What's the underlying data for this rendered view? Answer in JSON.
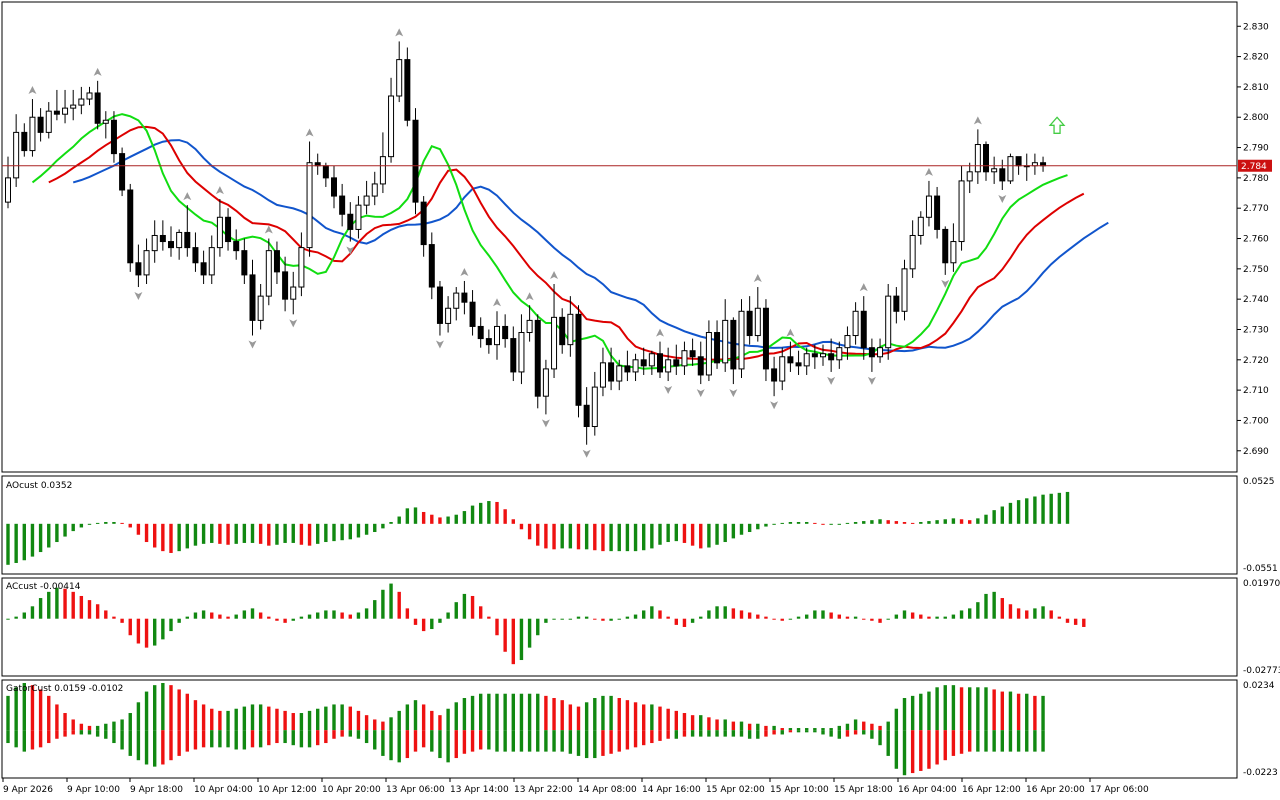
{
  "colors": {
    "bg": "#ffffff",
    "frame": "#000000",
    "bull_candle": "#ffffff",
    "bear_candle": "#000000",
    "ma_blue": "#1155cc",
    "ma_red": "#dd0000",
    "ma_green": "#11dd11",
    "price_line": "#aa2222",
    "price_tag": "#cc1111",
    "hist_up": "#118811",
    "hist_down": "#ee1111",
    "fractal": "#999999",
    "arrow": "#44cc44"
  },
  "chart_data": [
    {
      "type": "candlestick",
      "pane": "main",
      "ylim": [
        2.683,
        2.838
      ],
      "y_ticks": [
        "2.830",
        "2.820",
        "2.810",
        "2.800",
        "2.790",
        "2.780",
        "2.770",
        "2.760",
        "2.750",
        "2.740",
        "2.730",
        "2.720",
        "2.710",
        "2.700",
        "2.690"
      ],
      "current_price": "2.784",
      "x_labels": [
        "9 Apr 2026",
        "9 Apr 10:00",
        "9 Apr 18:00",
        "10 Apr 04:00",
        "10 Apr 12:00",
        "10 Apr 20:00",
        "13 Apr 06:00",
        "13 Apr 14:00",
        "13 Apr 22:00",
        "14 Apr 08:00",
        "14 Apr 16:00",
        "15 Apr 02:00",
        "15 Apr 10:00",
        "15 Apr 18:00",
        "16 Apr 04:00",
        "16 Apr 12:00",
        "16 Apr 20:00",
        "17 Apr 06:00"
      ],
      "close": [
        2.78,
        2.795,
        2.789,
        2.8,
        2.795,
        2.802,
        2.801,
        2.803,
        2.804,
        2.806,
        2.808,
        2.798,
        2.799,
        2.788,
        2.776,
        2.752,
        2.748,
        2.756,
        2.761,
        2.759,
        2.757,
        2.762,
        2.757,
        2.752,
        2.748,
        2.757,
        2.767,
        2.759,
        2.756,
        2.748,
        2.733,
        2.741,
        2.756,
        2.749,
        2.74,
        2.744,
        2.757,
        2.785,
        2.784,
        2.78,
        2.774,
        2.768,
        2.763,
        2.771,
        2.774,
        2.778,
        2.787,
        2.807,
        2.819,
        2.799,
        2.772,
        2.758,
        2.744,
        2.732,
        2.737,
        2.742,
        2.739,
        2.731,
        2.727,
        2.725,
        2.731,
        2.727,
        2.716,
        2.729,
        2.733,
        2.708,
        2.717,
        2.734,
        2.725,
        2.735,
        2.705,
        2.698,
        2.711,
        2.719,
        2.713,
        2.718,
        2.716,
        2.72,
        2.718,
        2.722,
        2.716,
        2.72,
        2.718,
        2.723,
        2.721,
        2.715,
        2.729,
        2.719,
        2.733,
        2.717,
        2.736,
        2.728,
        2.737,
        2.717,
        2.713,
        2.721,
        2.719,
        2.718,
        2.722,
        2.721,
        2.722,
        2.72,
        2.724,
        2.728,
        2.736,
        2.724,
        2.721,
        2.724,
        2.741,
        2.736,
        2.75,
        2.761,
        2.767,
        2.774,
        2.763,
        2.752,
        2.759,
        2.779,
        2.782,
        2.791,
        2.782,
        2.783,
        2.779,
        2.787,
        2.784,
        2.784,
        2.785,
        2.784
      ],
      "open": [
        2.772,
        2.78,
        2.795,
        2.789,
        2.8,
        2.795,
        2.802,
        2.801,
        2.803,
        2.804,
        2.806,
        2.808,
        2.798,
        2.799,
        2.788,
        2.776,
        2.752,
        2.748,
        2.756,
        2.761,
        2.759,
        2.757,
        2.762,
        2.757,
        2.752,
        2.748,
        2.757,
        2.767,
        2.759,
        2.756,
        2.748,
        2.733,
        2.741,
        2.756,
        2.749,
        2.74,
        2.744,
        2.757,
        2.785,
        2.784,
        2.78,
        2.774,
        2.768,
        2.763,
        2.771,
        2.774,
        2.778,
        2.787,
        2.807,
        2.819,
        2.799,
        2.772,
        2.758,
        2.744,
        2.732,
        2.737,
        2.742,
        2.739,
        2.731,
        2.727,
        2.725,
        2.731,
        2.727,
        2.716,
        2.729,
        2.733,
        2.708,
        2.717,
        2.734,
        2.725,
        2.735,
        2.705,
        2.698,
        2.711,
        2.719,
        2.713,
        2.718,
        2.716,
        2.72,
        2.718,
        2.722,
        2.716,
        2.72,
        2.718,
        2.723,
        2.721,
        2.715,
        2.729,
        2.719,
        2.733,
        2.717,
        2.736,
        2.728,
        2.737,
        2.717,
        2.713,
        2.721,
        2.719,
        2.718,
        2.722,
        2.721,
        2.722,
        2.72,
        2.724,
        2.728,
        2.736,
        2.724,
        2.721,
        2.724,
        2.741,
        2.736,
        2.75,
        2.761,
        2.767,
        2.774,
        2.763,
        2.752,
        2.759,
        2.779,
        2.782,
        2.791,
        2.782,
        2.783,
        2.779,
        2.787,
        2.784,
        2.784,
        2.785
      ],
      "high": [
        2.787,
        2.801,
        2.798,
        2.806,
        2.803,
        2.805,
        2.809,
        2.809,
        2.809,
        2.81,
        2.81,
        2.812,
        2.802,
        2.802,
        2.79,
        2.778,
        2.758,
        2.76,
        2.766,
        2.766,
        2.764,
        2.763,
        2.771,
        2.762,
        2.756,
        2.761,
        2.773,
        2.77,
        2.763,
        2.76,
        2.753,
        2.745,
        2.76,
        2.759,
        2.754,
        2.749,
        2.762,
        2.792,
        2.788,
        2.785,
        2.784,
        2.778,
        2.772,
        2.774,
        2.779,
        2.782,
        2.795,
        2.813,
        2.825,
        2.823,
        2.803,
        2.774,
        2.762,
        2.746,
        2.741,
        2.744,
        2.746,
        2.743,
        2.734,
        2.73,
        2.736,
        2.735,
        2.731,
        2.735,
        2.738,
        2.735,
        2.72,
        2.745,
        2.737,
        2.741,
        2.738,
        2.711,
        2.716,
        2.724,
        2.724,
        2.72,
        2.723,
        2.722,
        2.724,
        2.723,
        2.726,
        2.724,
        2.725,
        2.726,
        2.727,
        2.726,
        2.733,
        2.733,
        2.74,
        2.734,
        2.74,
        2.741,
        2.744,
        2.74,
        2.721,
        2.724,
        2.726,
        2.723,
        2.724,
        2.725,
        2.725,
        2.727,
        2.726,
        2.731,
        2.739,
        2.741,
        2.727,
        2.727,
        2.745,
        2.744,
        2.753,
        2.766,
        2.769,
        2.779,
        2.777,
        2.764,
        2.765,
        2.784,
        2.785,
        2.796,
        2.792,
        2.787,
        2.786,
        2.788,
        2.787,
        2.788,
        2.788,
        2.787
      ],
      "low": [
        2.77,
        2.777,
        2.787,
        2.787,
        2.792,
        2.793,
        2.799,
        2.798,
        2.799,
        2.801,
        2.804,
        2.796,
        2.793,
        2.785,
        2.774,
        2.749,
        2.744,
        2.745,
        2.752,
        2.756,
        2.754,
        2.753,
        2.754,
        2.749,
        2.745,
        2.745,
        2.754,
        2.756,
        2.753,
        2.745,
        2.728,
        2.73,
        2.738,
        2.745,
        2.736,
        2.735,
        2.741,
        2.754,
        2.781,
        2.777,
        2.77,
        2.764,
        2.759,
        2.76,
        2.768,
        2.771,
        2.775,
        2.785,
        2.805,
        2.797,
        2.768,
        2.754,
        2.74,
        2.728,
        2.729,
        2.733,
        2.735,
        2.728,
        2.724,
        2.722,
        2.72,
        2.724,
        2.713,
        2.712,
        2.726,
        2.704,
        2.702,
        2.714,
        2.722,
        2.721,
        2.701,
        2.692,
        2.695,
        2.708,
        2.71,
        2.71,
        2.713,
        2.713,
        2.715,
        2.715,
        2.714,
        2.713,
        2.715,
        2.715,
        2.718,
        2.712,
        2.713,
        2.717,
        2.716,
        2.712,
        2.714,
        2.725,
        2.726,
        2.713,
        2.708,
        2.71,
        2.716,
        2.715,
        2.715,
        2.717,
        2.718,
        2.716,
        2.717,
        2.72,
        2.725,
        2.72,
        2.716,
        2.719,
        2.72,
        2.732,
        2.733,
        2.747,
        2.758,
        2.764,
        2.76,
        2.748,
        2.749,
        2.756,
        2.775,
        2.778,
        2.779,
        2.778,
        2.776,
        2.778,
        2.781,
        2.779,
        2.781,
        2.782
      ]
    },
    {
      "type": "bar",
      "pane": "AOcust",
      "title": "AOcust 0.0352",
      "ylim": [
        -0.0551,
        0.0525
      ],
      "y_ticks": [
        "0.0525",
        "-0.0551"
      ],
      "values": [
        -0.045,
        -0.043,
        -0.04,
        -0.036,
        -0.031,
        -0.026,
        -0.02,
        -0.014,
        -0.008,
        -0.004,
        -0.001,
        0.001,
        0.002,
        0.002,
        0.001,
        -0.004,
        -0.012,
        -0.02,
        -0.026,
        -0.03,
        -0.032,
        -0.03,
        -0.027,
        -0.024,
        -0.022,
        -0.021,
        -0.022,
        -0.023,
        -0.022,
        -0.021,
        -0.021,
        -0.022,
        -0.024,
        -0.023,
        -0.021,
        -0.021,
        -0.023,
        -0.024,
        -0.022,
        -0.02,
        -0.019,
        -0.018,
        -0.017,
        -0.015,
        -0.012,
        -0.009,
        -0.005,
        0.002,
        0.008,
        0.017,
        0.018,
        0.013,
        0.01,
        0.007,
        0.008,
        0.01,
        0.014,
        0.02,
        0.023,
        0.025,
        0.024,
        0.016,
        0.005,
        -0.006,
        -0.017,
        -0.024,
        -0.027,
        -0.028,
        -0.027,
        -0.027,
        -0.028,
        -0.028,
        -0.029,
        -0.03,
        -0.03,
        -0.03,
        -0.03,
        -0.03,
        -0.029,
        -0.027,
        -0.023,
        -0.02,
        -0.019,
        -0.021,
        -0.024,
        -0.027,
        -0.026,
        -0.023,
        -0.02,
        -0.016,
        -0.012,
        -0.009,
        -0.006,
        -0.003,
        -0.001,
        0.001,
        0.002,
        0.002,
        0.002,
        0.001,
        0.0,
        0.0,
        0.0,
        0.001,
        0.002,
        0.003,
        0.004,
        0.005,
        0.004,
        0.003,
        0.002,
        0.001,
        0.002,
        0.003,
        0.004,
        0.005,
        0.006,
        0.005,
        0.004,
        0.006,
        0.01,
        0.015,
        0.019,
        0.023,
        0.026,
        0.028,
        0.03,
        0.032,
        0.033,
        0.034,
        0.035
      ]
    },
    {
      "type": "bar",
      "pane": "ACcust",
      "title": "ACcust -0.00414",
      "ylim": [
        -0.02773,
        0.0197
      ],
      "y_ticks": [
        "0.01970",
        "-0.02773"
      ],
      "values": [
        0.0,
        0.001,
        0.003,
        0.006,
        0.01,
        0.013,
        0.015,
        0.0145,
        0.013,
        0.011,
        0.009,
        0.007,
        0.004,
        0.001,
        -0.002,
        -0.008,
        -0.012,
        -0.014,
        -0.013,
        -0.01,
        -0.006,
        -0.002,
        0.001,
        0.003,
        0.004,
        0.003,
        0.002,
        0.001,
        0.002,
        0.004,
        0.005,
        0.003,
        0.001,
        -0.001,
        -0.002,
        -0.001,
        0.001,
        0.002,
        0.003,
        0.004,
        0.004,
        0.003,
        0.002,
        0.003,
        0.005,
        0.009,
        0.014,
        0.017,
        0.013,
        0.005,
        -0.003,
        -0.006,
        -0.005,
        -0.002,
        0.003,
        0.008,
        0.012,
        0.011,
        0.006,
        0.001,
        -0.008,
        -0.016,
        -0.022,
        -0.02,
        -0.014,
        -0.008,
        -0.002,
        0.0,
        0.0,
        0.0,
        0.001,
        0.001,
        0.0,
        -0.001,
        -0.001,
        0.0,
        0.001,
        0.002,
        0.004,
        0.006,
        0.004,
        0.001,
        -0.003,
        -0.004,
        -0.002,
        0.001,
        0.004,
        0.006,
        0.006,
        0.005,
        0.004,
        0.003,
        0.002,
        0.001,
        0.0,
        -0.001,
        0.0,
        0.001,
        0.002,
        0.004,
        0.004,
        0.003,
        0.002,
        0.001,
        0.001,
        0.0,
        -0.001,
        -0.002,
        0.0,
        0.002,
        0.004,
        0.003,
        0.002,
        0.001,
        0.001,
        0.001,
        0.002,
        0.004,
        0.005,
        0.008,
        0.012,
        0.013,
        0.01,
        0.007,
        0.005,
        0.004,
        0.005,
        0.006,
        0.004,
        0.001,
        -0.002,
        -0.003,
        -0.004
      ]
    },
    {
      "type": "bar",
      "pane": "GatorCust",
      "title": "GatorCust 0.0159 -0.0102",
      "ylim": [
        -0.0223,
        0.0234
      ],
      "y_ticks": [
        "0.0234",
        "-0.0223"
      ],
      "upper": [
        0.016,
        0.02,
        0.022,
        0.021,
        0.019,
        0.016,
        0.012,
        0.008,
        0.005,
        0.003,
        0.002,
        0.002,
        0.003,
        0.004,
        0.005,
        0.008,
        0.013,
        0.018,
        0.021,
        0.022,
        0.021,
        0.019,
        0.017,
        0.014,
        0.012,
        0.01,
        0.009,
        0.009,
        0.01,
        0.011,
        0.012,
        0.012,
        0.011,
        0.01,
        0.009,
        0.008,
        0.008,
        0.009,
        0.01,
        0.011,
        0.012,
        0.012,
        0.011,
        0.009,
        0.007,
        0.005,
        0.004,
        0.006,
        0.009,
        0.012,
        0.014,
        0.012,
        0.009,
        0.007,
        0.01,
        0.013,
        0.015,
        0.016,
        0.017,
        0.017,
        0.017,
        0.017,
        0.017,
        0.017,
        0.017,
        0.017,
        0.016,
        0.015,
        0.014,
        0.012,
        0.011,
        0.013,
        0.015,
        0.016,
        0.016,
        0.015,
        0.014,
        0.013,
        0.012,
        0.012,
        0.011,
        0.01,
        0.009,
        0.008,
        0.007,
        0.007,
        0.006,
        0.005,
        0.005,
        0.004,
        0.004,
        0.003,
        0.003,
        0.002,
        0.002,
        0.001,
        0.001,
        0.001,
        0.001,
        0.001,
        0.001,
        0.001,
        0.002,
        0.003,
        0.005,
        0.004,
        0.003,
        0.002,
        0.004,
        0.01,
        0.015,
        0.016,
        0.017,
        0.018,
        0.02,
        0.021,
        0.021,
        0.02,
        0.02,
        0.02,
        0.02,
        0.019,
        0.018,
        0.018,
        0.017,
        0.017,
        0.016,
        0.016
      ],
      "lower": [
        -0.006,
        -0.008,
        -0.01,
        -0.009,
        -0.008,
        -0.006,
        -0.004,
        -0.003,
        -0.002,
        -0.002,
        -0.002,
        -0.003,
        -0.004,
        -0.006,
        -0.009,
        -0.012,
        -0.014,
        -0.016,
        -0.017,
        -0.016,
        -0.014,
        -0.012,
        -0.01,
        -0.009,
        -0.008,
        -0.008,
        -0.008,
        -0.008,
        -0.009,
        -0.009,
        -0.008,
        -0.008,
        -0.007,
        -0.006,
        -0.006,
        -0.007,
        -0.008,
        -0.008,
        -0.007,
        -0.006,
        -0.004,
        -0.003,
        -0.003,
        -0.004,
        -0.006,
        -0.009,
        -0.012,
        -0.014,
        -0.015,
        -0.013,
        -0.01,
        -0.008,
        -0.01,
        -0.013,
        -0.015,
        -0.013,
        -0.011,
        -0.01,
        -0.009,
        -0.009,
        -0.01,
        -0.01,
        -0.01,
        -0.01,
        -0.01,
        -0.01,
        -0.01,
        -0.01,
        -0.01,
        -0.011,
        -0.012,
        -0.013,
        -0.013,
        -0.012,
        -0.011,
        -0.01,
        -0.009,
        -0.008,
        -0.007,
        -0.006,
        -0.005,
        -0.004,
        -0.004,
        -0.003,
        -0.003,
        -0.003,
        -0.003,
        -0.003,
        -0.003,
        -0.003,
        -0.003,
        -0.004,
        -0.004,
        -0.003,
        -0.002,
        -0.002,
        -0.001,
        -0.001,
        -0.001,
        -0.001,
        -0.002,
        -0.003,
        -0.004,
        -0.003,
        -0.002,
        -0.002,
        -0.004,
        -0.007,
        -0.012,
        -0.018,
        -0.021,
        -0.02,
        -0.019,
        -0.018,
        -0.016,
        -0.014,
        -0.012,
        -0.011,
        -0.01,
        -0.01,
        -0.01,
        -0.01,
        -0.01,
        -0.01,
        -0.01,
        -0.01,
        -0.01,
        -0.01
      ]
    }
  ]
}
